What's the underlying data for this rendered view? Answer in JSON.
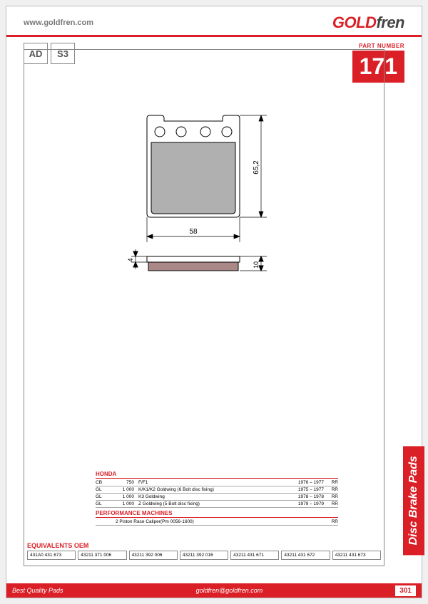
{
  "header": {
    "url": "www.goldfren.com",
    "logo_part1": "GOLD",
    "logo_part2": "fren"
  },
  "types": [
    "AD",
    "S3"
  ],
  "part": {
    "label": "PART NUMBER",
    "number": "171"
  },
  "drawing": {
    "width_mm": "58",
    "height_mm": "65,2",
    "thick_mm": "10",
    "plate_mm": "4"
  },
  "fitment": {
    "section1": {
      "title": "HONDA",
      "rows": [
        {
          "model": "CB",
          "cc": "750",
          "desc": "F/F1",
          "years": "1976 – 1977",
          "pos": "RR"
        },
        {
          "model": "GL",
          "cc": "1 000",
          "desc": "K/K1/K2 Goldwing (6 Bolt disc fixing)",
          "years": "1975 – 1977",
          "pos": "RR"
        },
        {
          "model": "GL",
          "cc": "1 000",
          "desc": "K3 Goldwing",
          "years": "1978 – 1978",
          "pos": "RR"
        },
        {
          "model": "GL",
          "cc": "1 000",
          "desc": "Z Goldwing (5 Bolt disc fixing)",
          "years": "1979 – 1979",
          "pos": "RR"
        }
      ]
    },
    "section2": {
      "title": "PERFORMANCE MACHINES",
      "rows": [
        {
          "desc": "2 Piston Race Caliper(Pm 0056-1600)",
          "pos": "RR"
        }
      ]
    }
  },
  "oem": {
    "title": "EQUIVALENTS OEM",
    "codes": [
      "431A0 431 673",
      "43211 371 006",
      "43211 392 006",
      "43211 392 016",
      "43211 431 671",
      "43211 431 672",
      "43211 431 673"
    ]
  },
  "side_tab": "Disc Brake Pads",
  "footer": {
    "left": "Best Quality Pads",
    "mid": "goldfren@goldfren.com",
    "page": "301"
  },
  "colors": {
    "brand": "#da1f26",
    "gray": "#888"
  }
}
